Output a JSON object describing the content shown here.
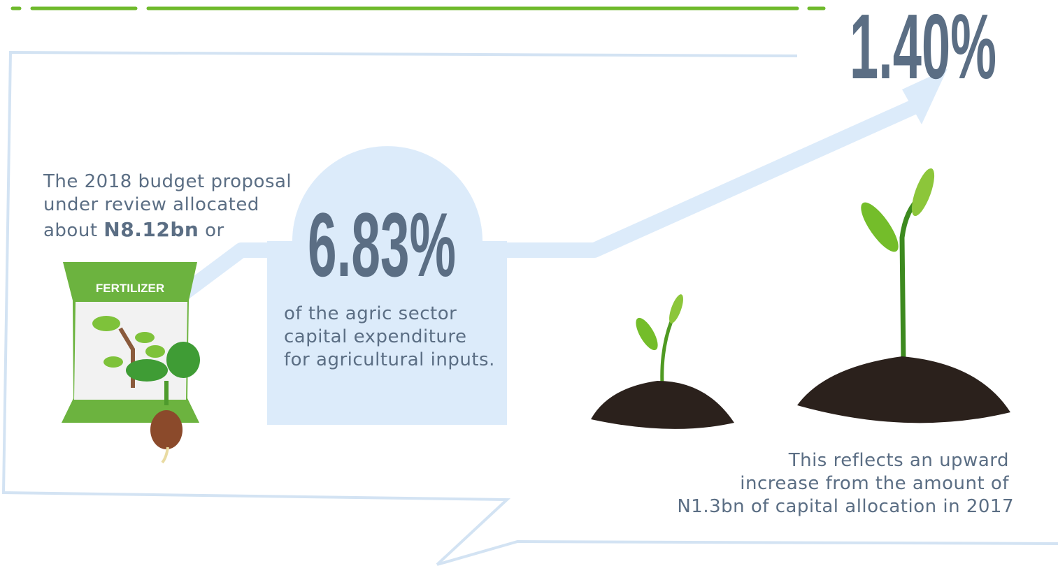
{
  "headline_percent": "1.40%",
  "intro": {
    "lines": [
      "The 2018 budget proposal",
      "under review allocated"
    ],
    "last_line_start": "about",
    "amount": "N8.12bn",
    "last_line_end": "or"
  },
  "bag_label": "FERTILIZER",
  "share": {
    "percent": "6.83%",
    "lines": [
      "of the agric sector",
      "capital expenditure",
      "for agricultural inputs."
    ]
  },
  "comparison": {
    "lines": [
      "This reflects an upward",
      "increase from the amount of",
      "N1.3bn of capital allocation in 2017"
    ]
  }
}
